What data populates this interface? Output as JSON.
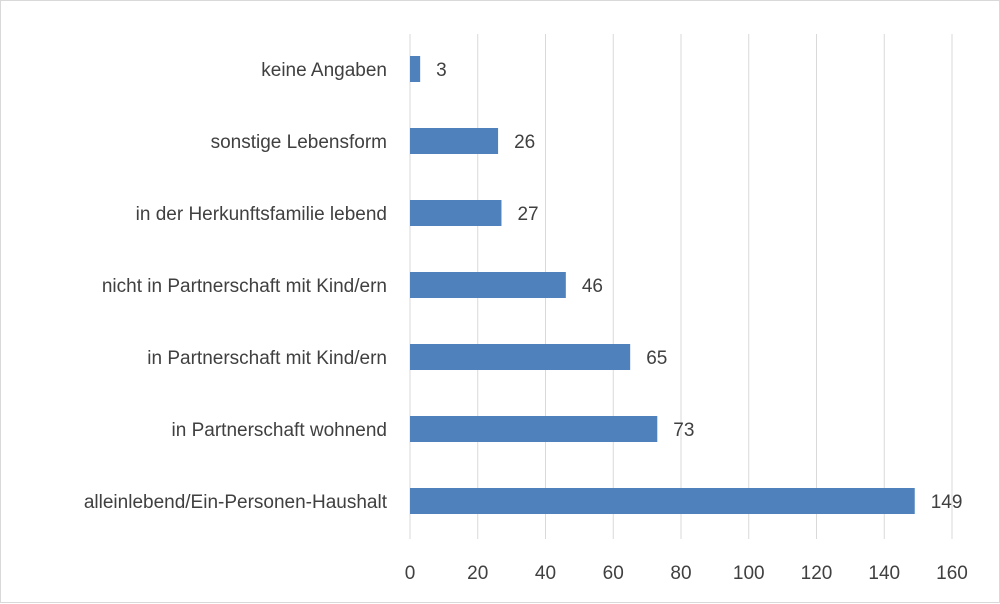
{
  "chart_data": {
    "type": "bar",
    "orientation": "horizontal",
    "categories": [
      "keine Angaben",
      "sonstige Lebensform",
      "in der Herkunftsfamilie lebend",
      "nicht in Partnerschaft mit Kind/ern",
      "in Partnerschaft mit Kind/ern",
      "in Partnerschaft wohnend",
      "alleinlebend/Ein-Personen-Haushalt"
    ],
    "values": [
      3,
      26,
      27,
      46,
      65,
      73,
      149
    ],
    "xlim": [
      0,
      160
    ],
    "xticks": [
      0,
      20,
      40,
      60,
      80,
      100,
      120,
      140,
      160
    ],
    "grid": "vertical",
    "data_labels": true,
    "legend": "none",
    "bar_color": "#4f81bd",
    "grid_color": "#d9d9d9"
  }
}
